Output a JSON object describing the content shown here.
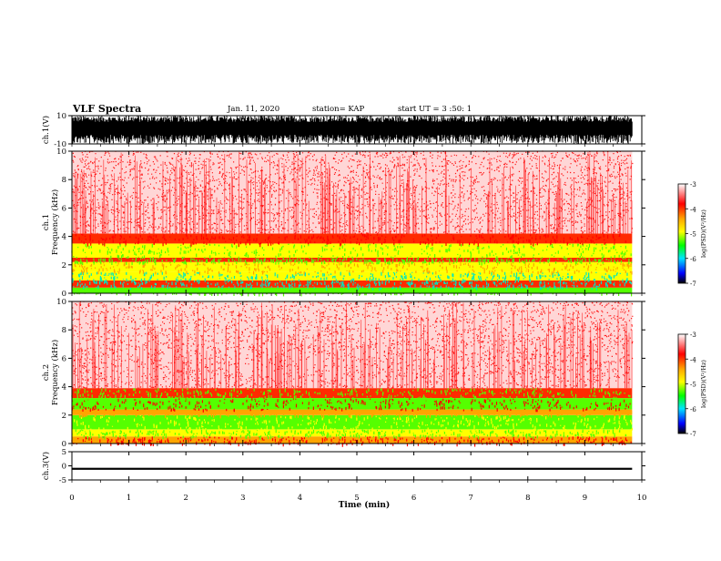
{
  "header": {
    "title": "VLF Spectra",
    "date": "Jan. 11, 2020",
    "station": "station= KAP",
    "start": "start UT =  3 :50: 1"
  },
  "colorbar": {
    "label": "log(PSD)(V²/Hz)",
    "ticks": [
      "-3",
      "-4",
      "-5",
      "-6",
      "-7"
    ],
    "ramp": [
      "#ffffff",
      "#ff0000",
      "#ffa500",
      "#ffff00",
      "#00ff00",
      "#00e5ff",
      "#0000ff",
      "#000000"
    ]
  },
  "chart_data": [
    {
      "type": "line",
      "panel": "ch1-waveform",
      "ylabel": "ch.1(V)",
      "ylim": [
        -10,
        10
      ],
      "yticks": [
        "10",
        "-10"
      ],
      "xlim": [
        0,
        10
      ],
      "data_extent_min": [
        0,
        9.83
      ],
      "amplitude_range_V": [
        -10,
        10
      ]
    },
    {
      "type": "heatmap",
      "panel": "ch1-spectrogram",
      "ylabel": "ch.1 Frequency (kHz)",
      "ylim": [
        0,
        10
      ],
      "yticks": [
        "0",
        "2",
        "4",
        "6",
        "8",
        "10"
      ],
      "xlim": [
        0,
        10
      ],
      "data_extent_min": [
        0,
        9.83
      ],
      "colorbar_range": [
        -7,
        -3
      ],
      "bands": [
        {
          "freq_kHz": [
            0,
            0.4
          ],
          "level": -5.0
        },
        {
          "freq_kHz": [
            0.4,
            0.9
          ],
          "level": -4.0
        },
        {
          "freq_kHz": [
            0.9,
            1.5
          ],
          "level": -4.5
        },
        {
          "freq_kHz": [
            1.5,
            2.2
          ],
          "level": -4.7
        },
        {
          "freq_kHz": [
            2.2,
            2.5
          ],
          "level": -4.0
        },
        {
          "freq_kHz": [
            2.5,
            3.5
          ],
          "level": -4.6
        },
        {
          "freq_kHz": [
            3.5,
            4.2
          ],
          "level": -3.8
        },
        {
          "freq_kHz": [
            4.2,
            10
          ],
          "level": -3.2
        }
      ]
    },
    {
      "type": "heatmap",
      "panel": "ch2-spectrogram",
      "ylabel": "ch.2 Frequency (kHz)",
      "ylim": [
        0,
        10
      ],
      "yticks": [
        "0",
        "2",
        "4",
        "6",
        "8",
        "10"
      ],
      "xlim": [
        0,
        10
      ],
      "data_extent_min": [
        0,
        9.83
      ],
      "colorbar_range": [
        -7,
        -3
      ],
      "bands": [
        {
          "freq_kHz": [
            0,
            0.5
          ],
          "level": -4.3
        },
        {
          "freq_kHz": [
            0.5,
            1.0
          ],
          "level": -4.6
        },
        {
          "freq_kHz": [
            1.0,
            2.0
          ],
          "level": -5.0
        },
        {
          "freq_kHz": [
            2.0,
            2.4
          ],
          "level": -4.2
        },
        {
          "freq_kHz": [
            2.4,
            3.2
          ],
          "level": -5.0
        },
        {
          "freq_kHz": [
            3.2,
            3.9
          ],
          "level": -3.9
        },
        {
          "freq_kHz": [
            3.9,
            10
          ],
          "level": -3.2
        }
      ]
    },
    {
      "type": "line",
      "panel": "ch3-waveform",
      "ylabel": "ch.3(V)",
      "ylim": [
        -5,
        5
      ],
      "yticks": [
        "5",
        "0",
        "-5"
      ],
      "xlim": [
        0,
        10
      ],
      "data_extent_min": [
        0,
        9.83
      ],
      "amplitude_range_V": [
        -1.4,
        -0.7
      ],
      "xlabel": "Time (min)",
      "xticks": [
        "0",
        "1",
        "2",
        "3",
        "4",
        "5",
        "6",
        "7",
        "8",
        "9",
        "10"
      ]
    }
  ]
}
